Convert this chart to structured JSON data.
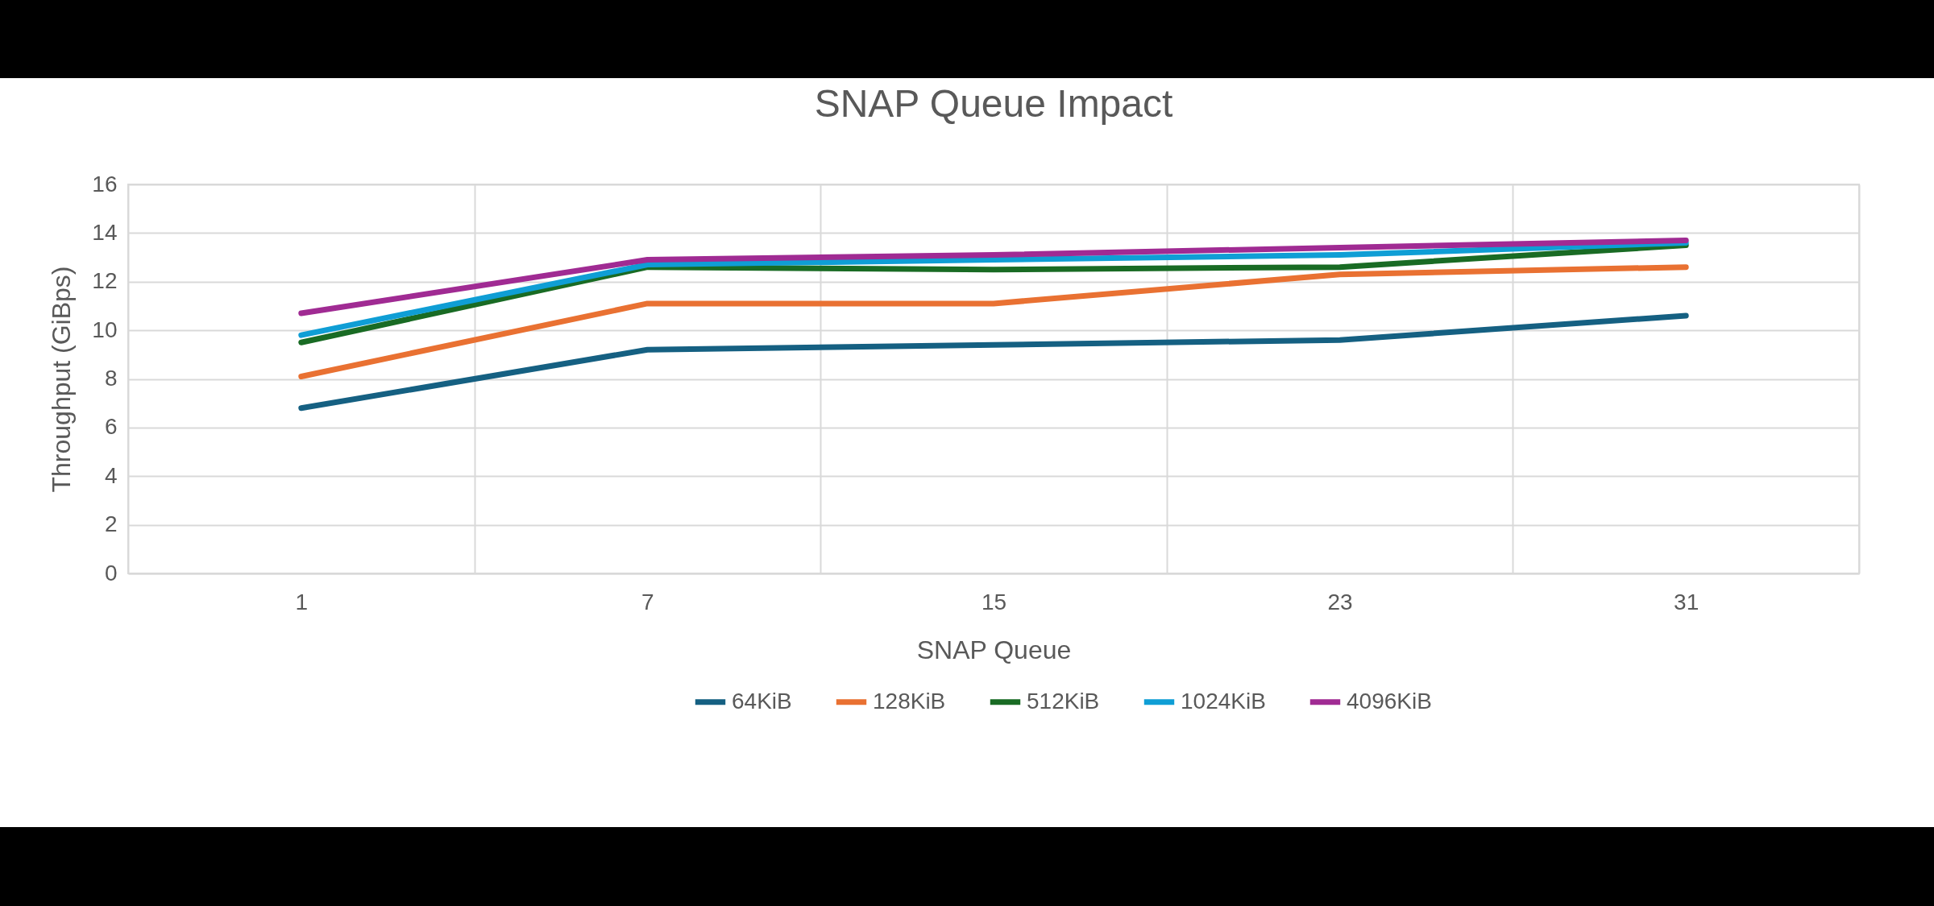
{
  "chart_data": {
    "type": "line",
    "title": "SNAP Queue Impact",
    "xlabel": "SNAP Queue",
    "ylabel": "Throughput (GiBps)",
    "categories": [
      "1",
      "7",
      "15",
      "23",
      "31"
    ],
    "series": [
      {
        "name": "64KiB",
        "color": "#156082",
        "values": [
          6.8,
          9.2,
          9.4,
          9.6,
          10.6
        ]
      },
      {
        "name": "128KiB",
        "color": "#e97132",
        "values": [
          8.1,
          11.1,
          11.1,
          12.3,
          12.6
        ]
      },
      {
        "name": "512KiB",
        "color": "#196b24",
        "values": [
          9.5,
          12.6,
          12.5,
          12.6,
          13.5
        ]
      },
      {
        "name": "1024KiB",
        "color": "#0f9ed5",
        "values": [
          9.8,
          12.7,
          12.9,
          13.1,
          13.6
        ]
      },
      {
        "name": "4096KiB",
        "color": "#a02b93",
        "values": [
          10.7,
          12.9,
          13.1,
          13.4,
          13.7
        ]
      }
    ],
    "ylim": [
      0,
      16
    ],
    "yticks": [
      0,
      2,
      4,
      6,
      8,
      10,
      12,
      14,
      16
    ],
    "grid": true,
    "legend": "bottom",
    "marker": "none",
    "line_style": "solid"
  }
}
